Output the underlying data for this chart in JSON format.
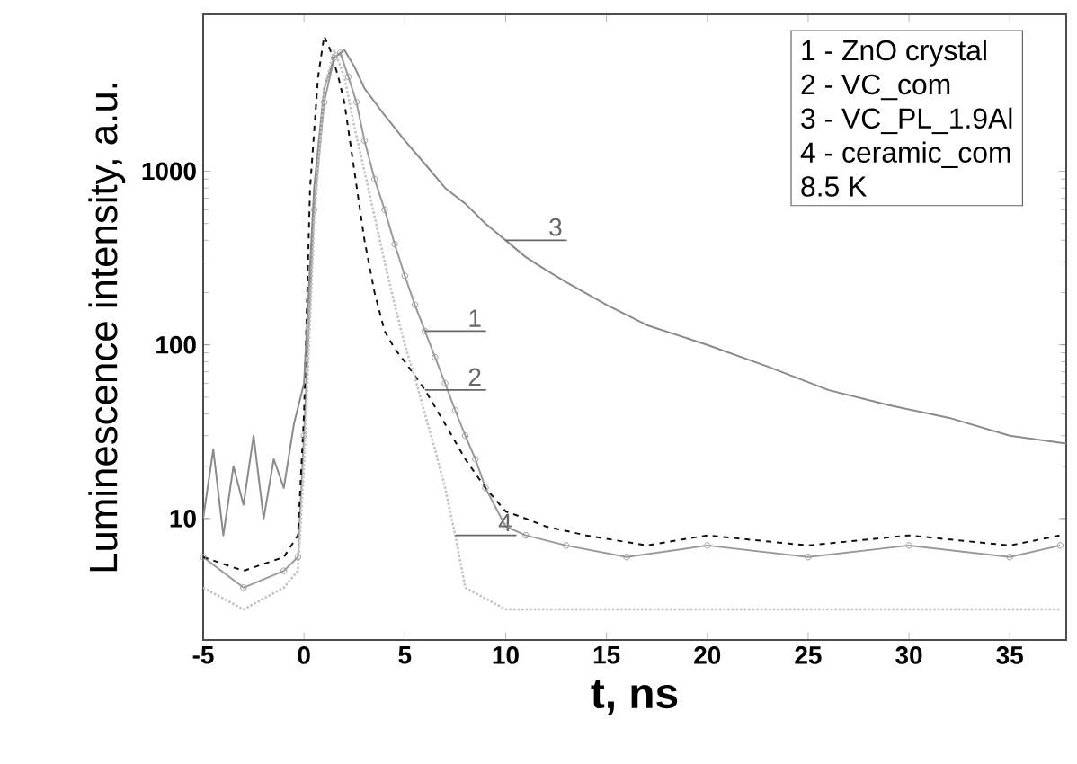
{
  "chart_data": {
    "type": "line",
    "xlabel": "t, ns",
    "ylabel": "Luminescence intensity, a.u.",
    "log": "y",
    "grid": false,
    "xlim": [
      -5,
      37.8
    ],
    "ylim": [
      2,
      8000
    ],
    "xticks": [
      -5,
      0,
      5,
      10,
      15,
      20,
      25,
      30,
      35
    ],
    "yticks": [
      10,
      100,
      1000
    ],
    "series": [
      {
        "color": "#9a9a9a",
        "marker": "circle",
        "line_style": "solid",
        "x": [
          -5,
          -3,
          -1,
          -0.3,
          0,
          0.5,
          1,
          1.5,
          1.8,
          2.2,
          2.6,
          3,
          3.5,
          4,
          4.5,
          5,
          5.5,
          6,
          6.5,
          7,
          7.5,
          8,
          8.5,
          9,
          10,
          11,
          13,
          16,
          20,
          25,
          30,
          35,
          37.5
        ],
        "values": [
          6,
          4,
          5,
          6,
          30,
          600,
          2500,
          4500,
          4800,
          3500,
          2500,
          1500,
          900,
          600,
          380,
          250,
          170,
          120,
          85,
          60,
          42,
          30,
          22,
          15,
          9,
          8,
          7,
          6,
          7,
          6,
          7,
          6,
          7
        ]
      },
      {
        "color": "#111111",
        "line_style": "dashed",
        "x": [
          -5,
          -3,
          -1,
          -0.3,
          0,
          0.3,
          0.7,
          1,
          1.3,
          1.7,
          2,
          2.5,
          3,
          3.5,
          4,
          4.5,
          5,
          6,
          7,
          8,
          9,
          10,
          11,
          12,
          14,
          17,
          20,
          25,
          30,
          35,
          37.5
        ],
        "values": [
          6,
          5,
          6,
          8,
          40,
          800,
          3500,
          6000,
          5000,
          3500,
          2500,
          1000,
          400,
          200,
          120,
          95,
          80,
          55,
          35,
          22,
          15,
          11,
          10,
          9,
          8,
          7,
          8,
          7,
          8,
          7,
          8
        ]
      },
      {
        "color": "#8a8a8a",
        "line_style": "solid",
        "x": [
          -5,
          -4.5,
          -4,
          -3.5,
          -3,
          -2.5,
          -2,
          -1.5,
          -1,
          -0.5,
          0,
          0.5,
          1,
          1.5,
          2,
          2.5,
          3,
          4,
          5,
          6,
          7,
          8,
          9,
          10,
          11,
          12,
          13,
          15,
          17,
          20,
          23,
          26,
          29,
          32,
          35,
          37.8
        ],
        "values": [
          10,
          25,
          8,
          20,
          12,
          30,
          10,
          22,
          15,
          35,
          60,
          800,
          3000,
          4500,
          5000,
          4000,
          3000,
          2100,
          1500,
          1100,
          800,
          650,
          500,
          400,
          320,
          270,
          230,
          170,
          130,
          100,
          75,
          55,
          45,
          38,
          30,
          27
        ]
      },
      {
        "color": "#c4c4c4",
        "line_style": "dotted",
        "x": [
          -5,
          -3,
          -1,
          -0.3,
          0,
          0.5,
          1,
          1.5,
          2,
          2.5,
          3,
          3.5,
          4,
          4.5,
          5,
          5.5,
          6,
          6.5,
          7,
          7.5,
          8,
          10,
          15,
          20,
          25,
          30,
          35,
          37.5
        ],
        "values": [
          4,
          3,
          4,
          5,
          20,
          500,
          3000,
          5000,
          3500,
          1800,
          1000,
          550,
          300,
          170,
          100,
          65,
          40,
          25,
          15,
          8,
          4,
          3,
          3,
          3,
          3,
          3,
          3,
          3
        ]
      }
    ],
    "annotations": [
      "1 -  ZnO crystal",
      "2 - VC_com",
      "3 -  VC_PL_1.9Al",
      "4 - ceramic_com",
      "8.5 K",
      {
        "text": "1",
        "x": 6,
        "y": 120
      },
      {
        "text": "2",
        "x": 6,
        "y": 55
      },
      {
        "text": "3",
        "x": 10,
        "y": 400
      },
      {
        "text": "4",
        "x": 7.5,
        "y": 8
      }
    ]
  }
}
